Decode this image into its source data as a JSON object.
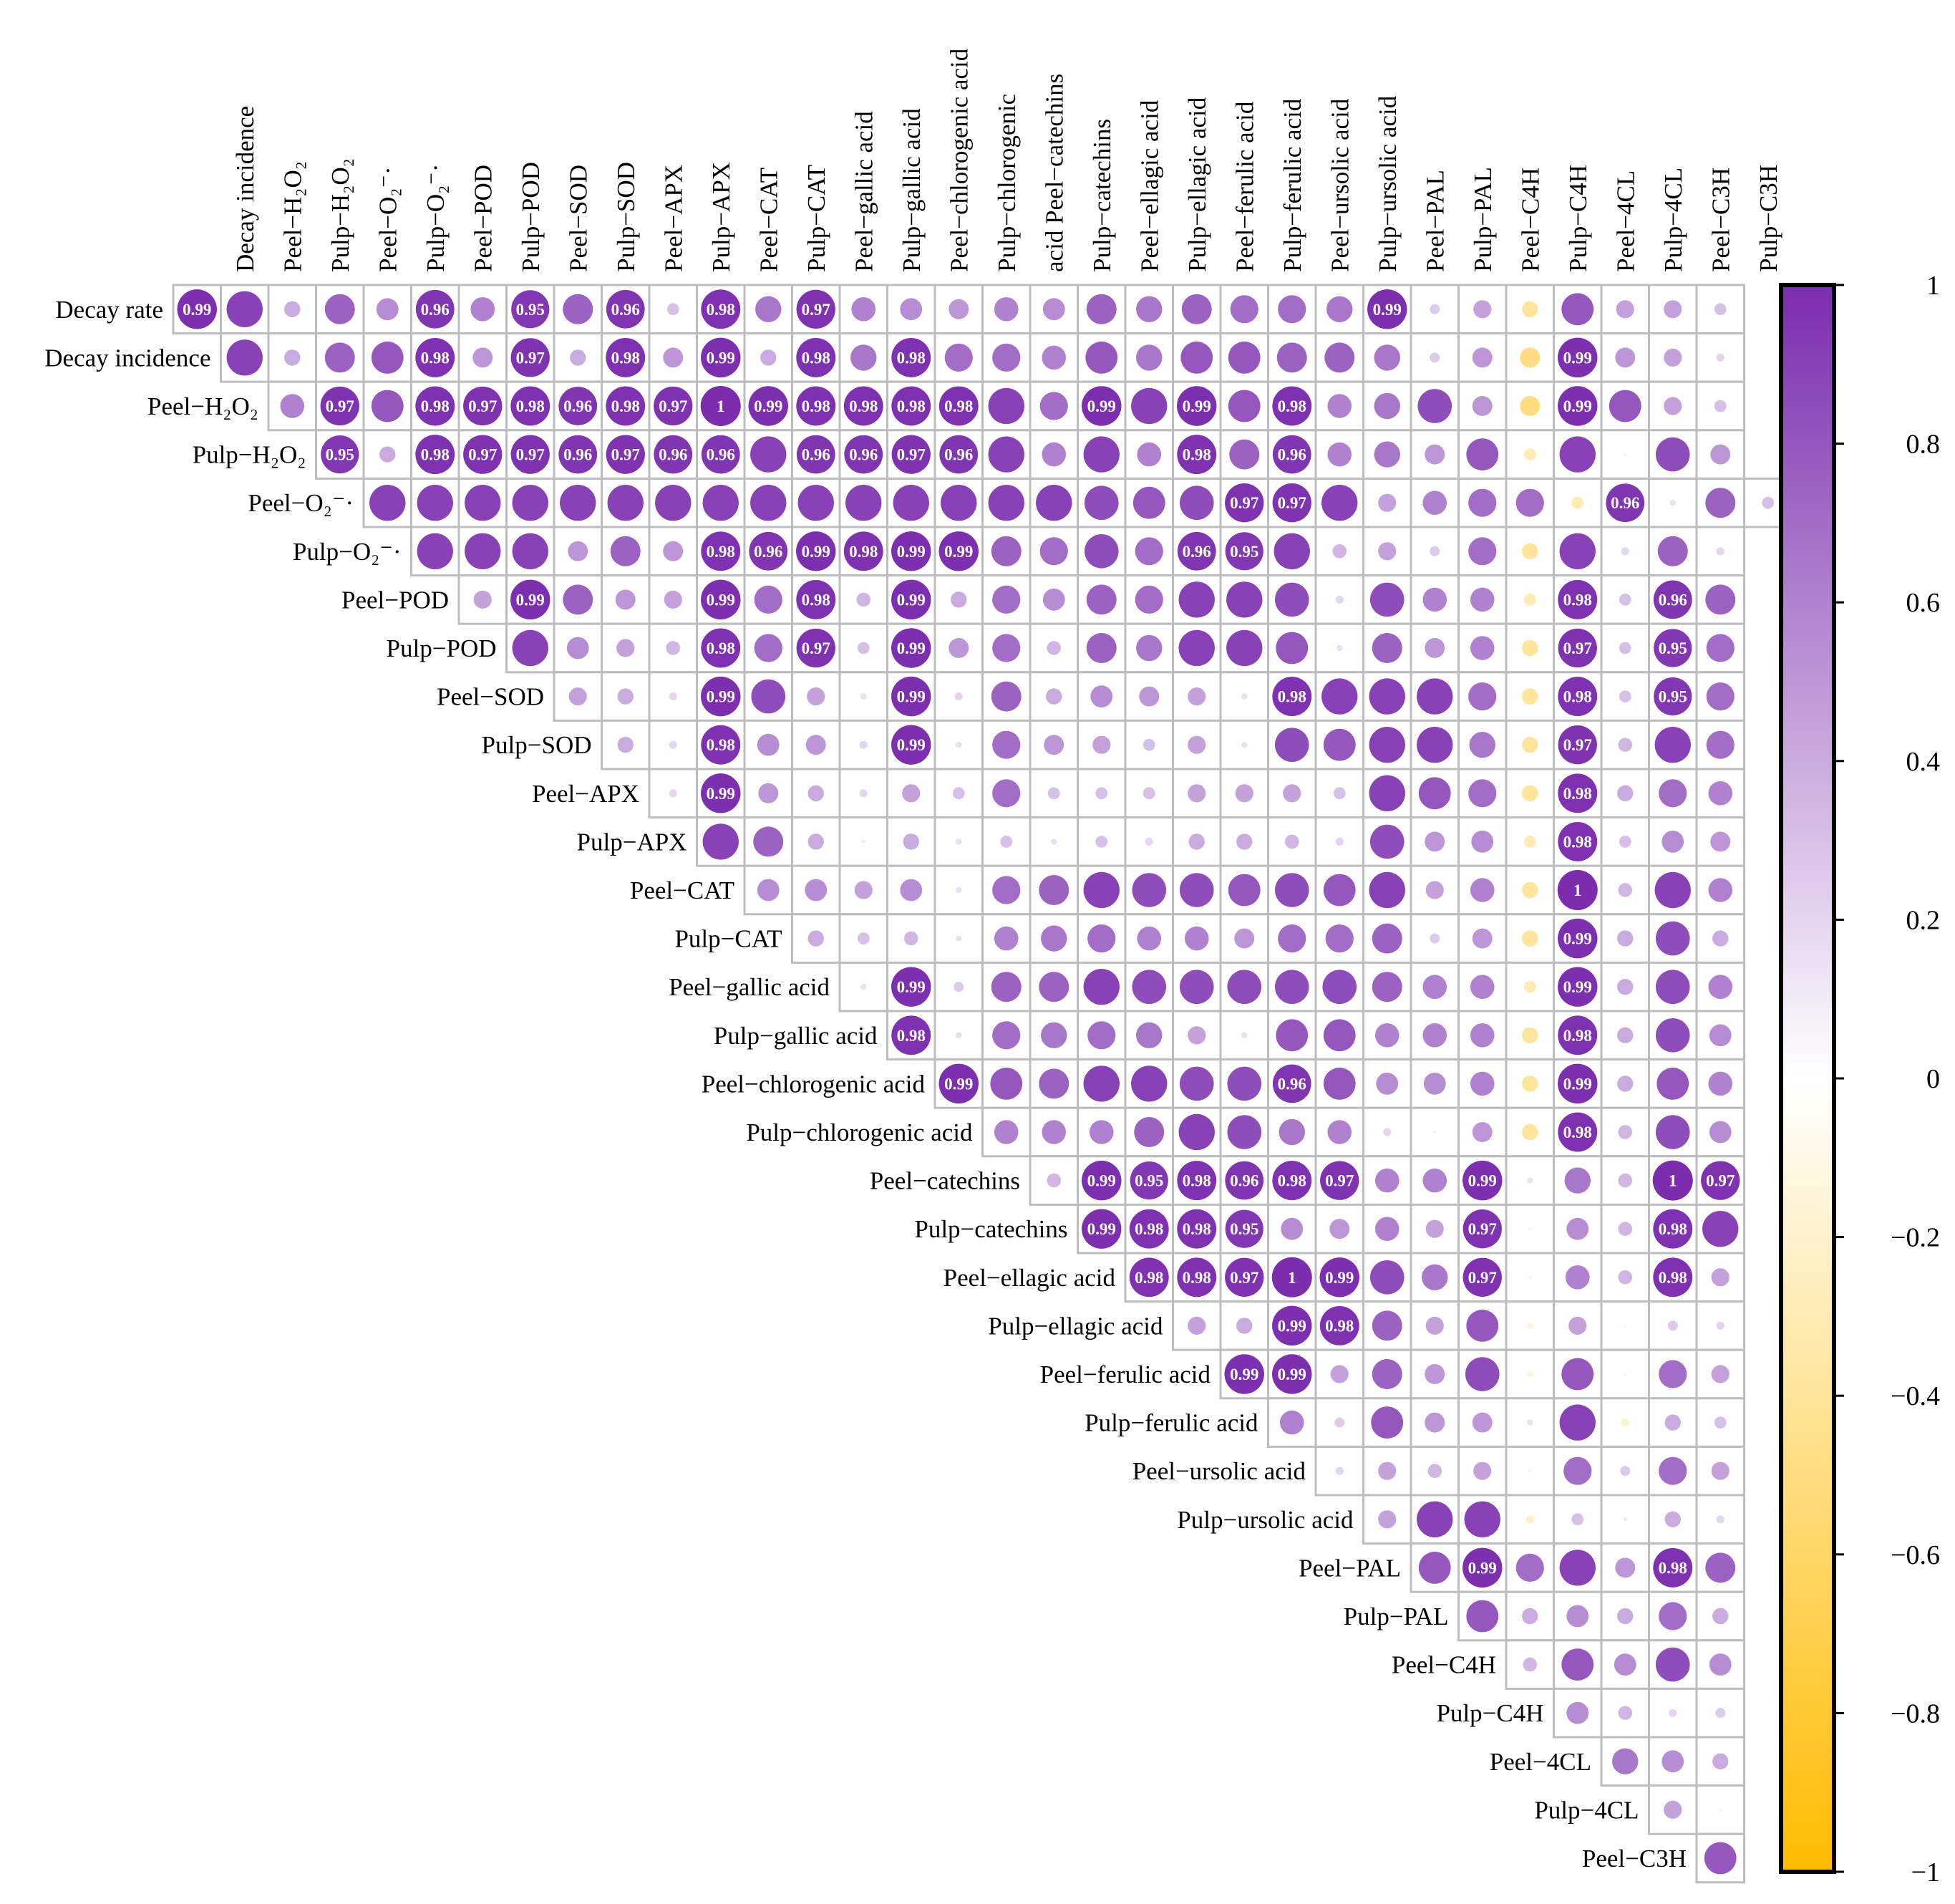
{
  "chart_data": {
    "type": "heatmap",
    "subtype": "correlation-circle-upper-triangle",
    "variables": [
      "Decay rate",
      "Decay incidence",
      "Peel−H₂O₂",
      "Pulp−H₂O₂",
      "Peel−O₂⁻·",
      "Pulp−O₂⁻·",
      "Peel−POD",
      "Pulp−POD",
      "Peel−SOD",
      "Pulp−SOD",
      "Peel−APX",
      "Pulp−APX",
      "Peel−CAT",
      "Pulp−CAT",
      "Peel−gallic acid",
      "Pulp−gallic acid",
      "Peel−chlorogenic acid",
      "Pulp−chlorogenic acid",
      "Peel−catechins",
      "Pulp−catechins",
      "Peel−ellagic acid",
      "Pulp−ellagic acid",
      "Peel−ferulic acid",
      "Pulp−ferulic acid",
      "Peel−ursolic acid",
      "Pulp−ursolic acid",
      "Peel−PAL",
      "Pulp−PAL",
      "Peel−C4H",
      "Pulp−C4H",
      "Peel−4CL",
      "Pulp−4CL",
      "Peel−C3H",
      "Pulp−C3H"
    ],
    "row_labels": [
      "Decay rate",
      "Decay incidence",
      "Peel−H₂O₂",
      "Pulp−H₂O₂",
      "Peel−O₂⁻·",
      "Pulp−O₂⁻·",
      "Peel−POD",
      "Pulp−POD",
      "Peel−SOD",
      "Pulp−SOD",
      "Peel−APX",
      "Pulp−APX",
      "Peel−CAT",
      "Pulp−CAT",
      "Peel−gallic acid",
      "Pulp−gallic acid",
      "Peel−chlorogenic acid",
      "Pulp−chlorogenic acid",
      "Peel−catechins",
      "Pulp−catechins",
      "Peel−ellagic acid",
      "Pulp−ellagic acid",
      "Peel−ferulic acid",
      "Pulp−ferulic acid",
      "Peel−ursolic acid",
      "Pulp−ursolic acid",
      "Peel−PAL",
      "Pulp−PAL",
      "Peel−C4H",
      "Pulp−C4H",
      "Peel−4CL",
      "Pulp−4CL",
      "Peel−C3H"
    ],
    "col_labels": [
      "Decay incidence",
      "Peel−H₂O₂",
      "Pulp−H₂O₂",
      "Peel−O₂⁻·",
      "Pulp−O₂⁻·",
      "Peel−POD",
      "Pulp−POD",
      "Peel−SOD",
      "Pulp−SOD",
      "Peel−APX",
      "Pulp−APX",
      "Peel−CAT",
      "Pulp−CAT",
      "Peel−gallic acid",
      "Pulp−gallic acid",
      "Peel−chlorogenic acid",
      "Pulp−chlorogenic",
      "acid Peel−catechins",
      "Pulp−catechins",
      "Peel−ellagic acid",
      "Pulp−ellagic acid",
      "Peel−ferulic acid",
      "Pulp−ferulic acid",
      "Peel−ursolic acid",
      "Pulp−ursolic acid",
      "Peel−PAL",
      "Pulp−PAL",
      "Peel−C4H",
      "Pulp−C4H",
      "Peel−4CL",
      "Pulp−4CL",
      "Peel−C3H",
      "Pulp−C3H"
    ],
    "rows": [
      [
        0.99,
        0.9,
        0.4,
        0.75,
        0.55,
        0.96,
        0.6,
        0.95,
        0.75,
        0.96,
        0.3,
        0.98,
        0.65,
        0.97,
        0.6,
        0.55,
        0.5,
        0.6,
        0.55,
        0.75,
        0.65,
        0.75,
        0.7,
        0.7,
        0.65,
        0.99,
        0.25,
        0.45,
        -0.4,
        0.8,
        0.45,
        0.45,
        0.3
      ],
      [
        0.9,
        0.4,
        0.75,
        0.8,
        0.98,
        0.5,
        0.97,
        0.4,
        0.98,
        0.5,
        0.99,
        0.4,
        0.98,
        0.65,
        0.98,
        0.7,
        0.7,
        0.6,
        0.8,
        0.65,
        0.8,
        0.8,
        0.75,
        0.75,
        0.65,
        0.25,
        0.5,
        -0.5,
        0.99,
        0.5,
        0.45,
        0.2
      ],
      [
        0.6,
        0.97,
        0.8,
        0.98,
        0.97,
        0.98,
        0.96,
        0.98,
        0.97,
        1,
        0.99,
        0.98,
        0.98,
        0.98,
        0.98,
        0.9,
        0.7,
        0.99,
        0.9,
        0.99,
        0.8,
        0.98,
        0.6,
        0.65,
        0.85,
        0.5,
        -0.5,
        0.99,
        0.8,
        0.45,
        0.3
      ],
      [
        0.95,
        0.4,
        0.98,
        0.97,
        0.97,
        0.96,
        0.97,
        0.96,
        0.96,
        0.9,
        0.96,
        0.96,
        0.97,
        0.96,
        0.9,
        0.6,
        0.9,
        0.6,
        0.98,
        0.75,
        0.96,
        0.6,
        0.65,
        0.5,
        0.8,
        -0.3,
        0.9,
        0.05,
        0.85,
        0.5
      ],
      [
        0.9,
        0.9,
        0.9,
        0.9,
        0.9,
        0.9,
        0.9,
        0.9,
        0.9,
        0.9,
        0.9,
        0.9,
        0.9,
        0.9,
        0.9,
        0.85,
        0.8,
        0.85,
        0.97,
        0.97,
        0.9,
        0.45,
        0.6,
        0.7,
        0.7,
        -0.3,
        0.96,
        0.15,
        0.75,
        0.3
      ],
      [
        0.9,
        0.9,
        0.9,
        0.5,
        0.75,
        0.5,
        0.98,
        0.96,
        0.99,
        0.98,
        0.99,
        0.99,
        0.75,
        0.7,
        0.85,
        0.7,
        0.96,
        0.95,
        0.9,
        0.35,
        0.45,
        0.25,
        0.7,
        -0.4,
        0.9,
        0.2,
        0.75,
        0.2
      ],
      [
        0.45,
        0.99,
        0.75,
        0.5,
        0.45,
        0.99,
        0.7,
        0.98,
        0.35,
        0.99,
        0.4,
        0.7,
        0.55,
        0.75,
        0.7,
        0.9,
        0.9,
        0.85,
        0.2,
        0.85,
        0.6,
        0.6,
        -0.3,
        0.98,
        0.3,
        0.96,
        0.75
      ],
      [
        0.9,
        0.55,
        0.45,
        0.35,
        0.98,
        0.7,
        0.97,
        0.3,
        0.99,
        0.5,
        0.7,
        0.35,
        0.75,
        0.65,
        0.9,
        0.9,
        0.8,
        0.15,
        0.75,
        0.5,
        0.6,
        -0.4,
        0.97,
        0.3,
        0.95,
        0.7
      ],
      [
        0.45,
        0.4,
        0.2,
        0.99,
        0.85,
        0.45,
        0.15,
        0.99,
        0.2,
        0.75,
        0.4,
        0.55,
        0.5,
        0.45,
        0.15,
        0.98,
        0.9,
        0.9,
        0.9,
        0.7,
        -0.4,
        0.98,
        0.3,
        0.95,
        0.7
      ],
      [
        0.4,
        0.2,
        0.98,
        0.55,
        0.5,
        0.2,
        0.99,
        0.15,
        0.7,
        0.5,
        0.45,
        0.3,
        0.45,
        0.15,
        0.85,
        0.8,
        0.9,
        0.9,
        0.65,
        -0.4,
        0.97,
        0.35,
        0.9,
        0.7
      ],
      [
        0.2,
        0.99,
        0.5,
        0.4,
        0.2,
        0.45,
        0.3,
        0.7,
        0.3,
        0.3,
        0.3,
        0.45,
        0.45,
        0.45,
        0.3,
        0.9,
        0.8,
        0.7,
        -0.4,
        0.98,
        0.4,
        0.7,
        0.6
      ],
      [
        0.9,
        0.75,
        0.4,
        0.1,
        0.4,
        0.15,
        0.3,
        0.15,
        0.3,
        0.2,
        0.4,
        0.4,
        0.35,
        0.2,
        0.85,
        0.5,
        0.55,
        -0.3,
        0.98,
        0.3,
        0.55,
        0.5
      ],
      [
        0.55,
        0.55,
        0.45,
        0.55,
        0.15,
        0.7,
        0.75,
        0.9,
        0.85,
        0.85,
        0.8,
        0.85,
        0.8,
        0.9,
        0.45,
        0.6,
        -0.4,
        1,
        0.35,
        0.9,
        0.6
      ],
      [
        0.4,
        0.3,
        0.35,
        0.15,
        0.6,
        0.65,
        0.7,
        0.6,
        0.6,
        0.5,
        0.7,
        0.7,
        0.75,
        0.25,
        0.5,
        -0.4,
        0.99,
        0.4,
        0.85,
        0.4
      ],
      [
        0.15,
        0.99,
        0.25,
        0.75,
        0.75,
        0.9,
        0.85,
        0.85,
        0.85,
        0.85,
        0.85,
        0.75,
        0.6,
        0.6,
        -0.3,
        0.99,
        0.4,
        0.85,
        0.6
      ],
      [
        0.98,
        0.15,
        0.7,
        0.65,
        0.7,
        0.65,
        0.45,
        0.15,
        0.8,
        0.8,
        0.6,
        0.6,
        0.6,
        -0.4,
        0.98,
        0.4,
        0.85,
        0.55
      ],
      [
        0.99,
        0.8,
        0.75,
        0.9,
        0.9,
        0.85,
        0.85,
        0.96,
        0.8,
        0.55,
        0.55,
        0.6,
        -0.4,
        0.99,
        0.4,
        0.8,
        0.6
      ],
      [
        0.6,
        0.6,
        0.6,
        0.75,
        0.9,
        0.85,
        0.65,
        0.6,
        0.2,
        0.05,
        0.5,
        -0.4,
        0.98,
        0.35,
        0.85,
        0.55
      ],
      [
        0.35,
        0.99,
        0.95,
        0.98,
        0.96,
        0.98,
        0.97,
        0.6,
        0.6,
        0.99,
        0.15,
        0.65,
        0.35,
        1,
        0.97
      ],
      [
        0.99,
        0.98,
        0.98,
        0.95,
        0.55,
        0.5,
        0.6,
        0.45,
        0.97,
        0.05,
        0.55,
        0.35,
        0.98,
        0.9
      ],
      [
        0.98,
        0.98,
        0.97,
        1,
        0.99,
        0.85,
        0.65,
        0.97,
        0.05,
        0.6,
        0.35,
        0.98,
        0.45
      ],
      [
        0.45,
        0.4,
        0.99,
        0.98,
        0.75,
        0.45,
        0.8,
        -0.15,
        0.45,
        -0.1,
        0.25,
        0.2
      ],
      [
        0.99,
        0.99,
        0.45,
        0.75,
        0.5,
        0.85,
        -0.15,
        0.8,
        0.05,
        0.7,
        0.45
      ],
      [
        0.6,
        0.25,
        0.8,
        0.5,
        0.5,
        0.15,
        0.9,
        -0.2,
        0.4,
        0.3
      ],
      [
        0.2,
        0.45,
        0.35,
        0.45,
        0.05,
        0.7,
        0.25,
        0.7,
        0.45
      ],
      [
        0.45,
        0.9,
        0.9,
        -0.2,
        0.3,
        0.1,
        0.4,
        0.2
      ],
      [
        0.8,
        0.99,
        0.7,
        0.9,
        0.5,
        0.98,
        0.75
      ],
      [
        0.8,
        0.4,
        0.55,
        0.4,
        0.7,
        0.4
      ],
      [
        0.35,
        0.8,
        0.55,
        0.85,
        0.55
      ],
      [
        0.55,
        0.35,
        0.2,
        0.25
      ],
      [
        0.65,
        0.55,
        0.4
      ],
      [
        0.45,
        0.05
      ],
      [
        0.8
      ]
    ],
    "colorbar": {
      "min": -1,
      "max": 1,
      "ticks": [
        "1",
        "0.8",
        "0.6",
        "0.4",
        "0.2",
        "0",
        "−0.2",
        "−0.4",
        "−0.6",
        "−0.8",
        "−1"
      ],
      "colors": [
        "#7b2dae",
        "#ffffff",
        "#ffbb00"
      ]
    },
    "annotation_threshold": 0.95,
    "title": "",
    "xlabel": "",
    "ylabel": ""
  }
}
